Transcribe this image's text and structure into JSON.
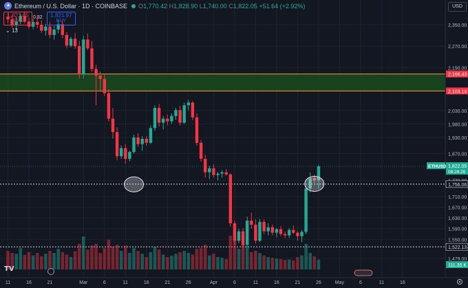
{
  "header": {
    "title": "Ethereum / U.S. Dollar · 1D · COINBASE",
    "ohlc": [
      {
        "k": "O",
        "v": "1,770.42"
      },
      {
        "k": "H",
        "v": "1,828.90"
      },
      {
        "k": "L",
        "v": "1,740.00"
      },
      {
        "k": "C",
        "v": "1,822.05"
      },
      {
        "k": "",
        "v": "+51.64 (+2.92%)"
      }
    ]
  },
  "trade": {
    "sell_price": "1,821.65",
    "sell_label": "SELL",
    "spread": "0.32",
    "buy_price": "1,821.97",
    "buy_label": "BUY"
  },
  "indicator_count": "13",
  "currency": "USD",
  "logo": "TV",
  "colors": {
    "up": "#22ab94",
    "down": "#f23645",
    "zone_fill": "#1b4a1e",
    "zone_border": "#f0a030",
    "bg": "#131722"
  },
  "chart_data": {
    "type": "candlestick",
    "symbol": "Ethereum / U.S. Dollar",
    "interval": "1D",
    "exchange": "COINBASE",
    "y_ticks": [
      "2,350.00",
      "2,270.00",
      "2,190.00",
      "2,030.00",
      "1,980.00",
      "1,930.00",
      "1,870.00",
      "1,770.00",
      "1,710.00",
      "1,670.00",
      "1,630.00",
      "1,590.00",
      "1,550.00",
      "1,479.00"
    ],
    "y_tick_values": [
      2350,
      2270,
      2190,
      2030,
      1980,
      1930,
      1870,
      1770,
      1710,
      1670,
      1630,
      1590,
      1550,
      1479
    ],
    "x_ticks": [
      "11",
      "16",
      "21",
      "Mar",
      "6",
      "11",
      "16",
      "21",
      "26",
      "Apr",
      "6",
      "11",
      "16",
      "21",
      "26",
      "May",
      "6",
      "11",
      "16"
    ],
    "x_tick_index": [
      0,
      5,
      10,
      18,
      23,
      28,
      33,
      38,
      43,
      49,
      54,
      59,
      64,
      69,
      74,
      79,
      84,
      89,
      94
    ],
    "price_labels": [
      {
        "text": "2,166.43",
        "value": 2166.43
      },
      {
        "text": "2,103.14",
        "value": 2103.14
      },
      {
        "text": "1,756.06",
        "value": 1756.06
      },
      {
        "text": "1,522.13",
        "value": 1522.13
      }
    ],
    "last_price": {
      "symbol": "ETHUSD",
      "price": "1,822.05",
      "countdown": "08:26:26",
      "value": 1822.05
    },
    "volume_label": "111.35 K",
    "zone": {
      "high": 2166.43,
      "low": 2103.14
    },
    "candles": [
      [
        2380,
        2395,
        2355,
        2370,
        0.45
      ],
      [
        2370,
        2385,
        2340,
        2350,
        0.4
      ],
      [
        2350,
        2378,
        2330,
        2362,
        0.38
      ],
      [
        2362,
        2392,
        2352,
        2383,
        0.52
      ],
      [
        2383,
        2400,
        2355,
        2362,
        0.35
      ],
      [
        2362,
        2376,
        2335,
        2343,
        0.42
      ],
      [
        2343,
        2372,
        2333,
        2360,
        0.34
      ],
      [
        2360,
        2385,
        2338,
        2350,
        0.4
      ],
      [
        2350,
        2366,
        2320,
        2328,
        0.32
      ],
      [
        2328,
        2353,
        2310,
        2343,
        0.38
      ],
      [
        2343,
        2360,
        2300,
        2312,
        0.45
      ],
      [
        2312,
        2345,
        2295,
        2332,
        0.4
      ],
      [
        2332,
        2365,
        2318,
        2352,
        0.5
      ],
      [
        2352,
        2370,
        2300,
        2312,
        0.42
      ],
      [
        2312,
        2322,
        2262,
        2272,
        0.36
      ],
      [
        2272,
        2305,
        2265,
        2298,
        0.3
      ],
      [
        2298,
        2320,
        2260,
        2270,
        0.44
      ],
      [
        2270,
        2290,
        2150,
        2165,
        0.62
      ],
      [
        2165,
        2310,
        2150,
        2295,
        0.8
      ],
      [
        2295,
        2318,
        2255,
        2262,
        0.48
      ],
      [
        2262,
        2290,
        2175,
        2185,
        0.58
      ],
      [
        2185,
        2200,
        2050,
        2160,
        0.62
      ],
      [
        2160,
        2175,
        2100,
        2148,
        0.4
      ],
      [
        2148,
        2168,
        2085,
        2095,
        0.52
      ],
      [
        2095,
        2110,
        1990,
        2000,
        0.72
      ],
      [
        2000,
        2040,
        1925,
        1950,
        0.55
      ],
      [
        1950,
        1968,
        1845,
        1860,
        0.6
      ],
      [
        1860,
        1900,
        1850,
        1890,
        0.45
      ],
      [
        1890,
        1905,
        1832,
        1850,
        0.58
      ],
      [
        1850,
        1880,
        1842,
        1876,
        0.4
      ],
      [
        1876,
        1940,
        1870,
        1930,
        0.52
      ],
      [
        1930,
        1945,
        1895,
        1905,
        0.45
      ],
      [
        1905,
        1935,
        1880,
        1925,
        0.38
      ],
      [
        1925,
        1935,
        1900,
        1910,
        0.3
      ],
      [
        1910,
        1975,
        1905,
        1965,
        0.42
      ],
      [
        1965,
        2050,
        1955,
        2040,
        0.55
      ],
      [
        2040,
        2055,
        1970,
        1985,
        0.48
      ],
      [
        1985,
        2010,
        1960,
        2000,
        0.36
      ],
      [
        2000,
        2015,
        1975,
        1990,
        0.3
      ],
      [
        1990,
        2020,
        1980,
        2010,
        0.33
      ],
      [
        2010,
        2040,
        1995,
        2032,
        0.38
      ],
      [
        2032,
        2048,
        1975,
        1985,
        0.42
      ],
      [
        1985,
        2060,
        1980,
        2050,
        0.45
      ],
      [
        2050,
        2070,
        2030,
        2060,
        0.4
      ],
      [
        2060,
        2065,
        1995,
        2005,
        0.36
      ],
      [
        2005,
        2020,
        1900,
        1910,
        0.5
      ],
      [
        1910,
        1920,
        1840,
        1850,
        0.52
      ],
      [
        1850,
        1865,
        1780,
        1800,
        0.6
      ],
      [
        1800,
        1825,
        1775,
        1815,
        0.34
      ],
      [
        1815,
        1830,
        1780,
        1790,
        0.38
      ],
      [
        1790,
        1802,
        1770,
        1795,
        0.3
      ],
      [
        1795,
        1808,
        1780,
        1800,
        0.28
      ],
      [
        1800,
        1812,
        1788,
        1792,
        0.25
      ],
      [
        1792,
        1796,
        1598,
        1610,
        0.82
      ],
      [
        1610,
        1620,
        1530,
        1545,
        0.7
      ],
      [
        1545,
        1590,
        1535,
        1580,
        0.5
      ],
      [
        1580,
        1592,
        1520,
        1530,
        0.62
      ],
      [
        1530,
        1635,
        1525,
        1620,
        0.58
      ],
      [
        1620,
        1650,
        1590,
        1605,
        0.42
      ],
      [
        1605,
        1625,
        1535,
        1545,
        0.45
      ],
      [
        1545,
        1625,
        1540,
        1615,
        0.4
      ],
      [
        1615,
        1625,
        1570,
        1580,
        0.34
      ],
      [
        1580,
        1610,
        1565,
        1595,
        0.3
      ],
      [
        1595,
        1605,
        1565,
        1575,
        0.28
      ],
      [
        1575,
        1592,
        1558,
        1588,
        0.26
      ],
      [
        1588,
        1600,
        1562,
        1570,
        0.25
      ],
      [
        1570,
        1580,
        1555,
        1565,
        0.23
      ],
      [
        1565,
        1592,
        1555,
        1585,
        0.24
      ],
      [
        1585,
        1602,
        1570,
        1575,
        0.22
      ],
      [
        1575,
        1582,
        1545,
        1562,
        0.3
      ],
      [
        1562,
        1585,
        1540,
        1578,
        0.34
      ],
      [
        1578,
        1748,
        1570,
        1740,
        0.62
      ],
      [
        1740,
        1800,
        1725,
        1778,
        0.4
      ],
      [
        1778,
        1792,
        1760,
        1770,
        0.32
      ],
      [
        1770,
        1828.9,
        1740,
        1822.05,
        0.24
      ]
    ],
    "markers": [
      {
        "index": 30,
        "value": 1755,
        "shape": "ellipse"
      },
      {
        "index": 73,
        "value": 1757,
        "shape": "ellipse"
      }
    ]
  }
}
